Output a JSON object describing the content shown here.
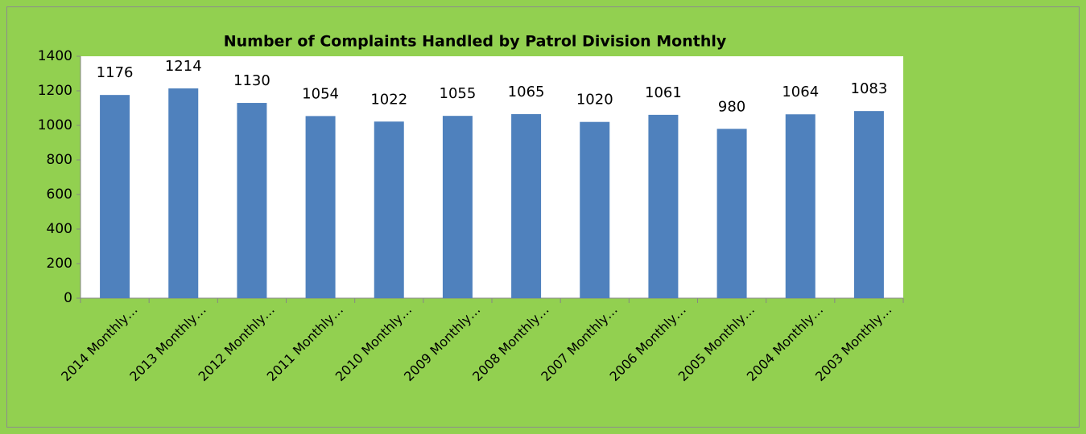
{
  "chart_data": {
    "type": "bar",
    "title": "Number of Complaints Handled by Patrol Division Monthly",
    "categories": [
      "2014 Monthly…",
      "2013 Monthly…",
      "2012 Monthly…",
      "2011 Monthly…",
      "2010 Monthly…",
      "2009 Monthly…",
      "2008 Monthly…",
      "2007 Monthly…",
      "2006 Monthly…",
      "2005 Monthly…",
      "2004 Monthly…",
      "2003 Monthly…"
    ],
    "values": [
      1176,
      1214,
      1130,
      1054,
      1022,
      1055,
      1065,
      1020,
      1061,
      980,
      1064,
      1083
    ],
    "color": "#4f81bd",
    "ylim": [
      0,
      1400
    ],
    "yticks": [
      0,
      200,
      400,
      600,
      800,
      1000,
      1200,
      1400
    ],
    "grid": false
  }
}
